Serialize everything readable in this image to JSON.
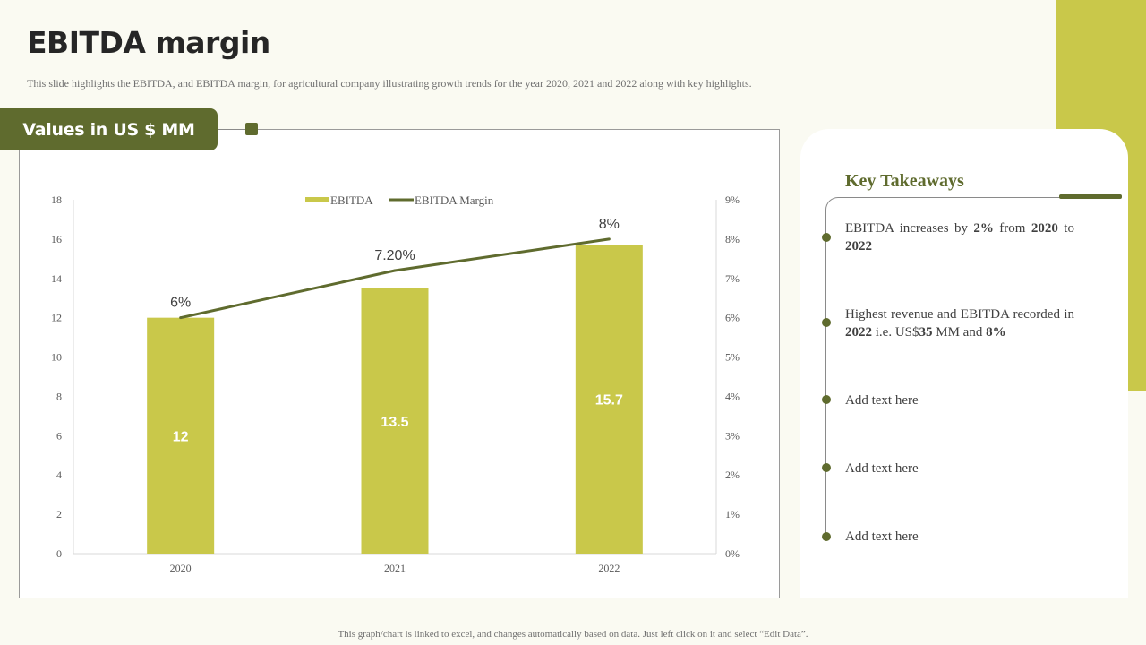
{
  "slide": {
    "title": "EBITDA margin",
    "subtitle": "This slide highlights the EBITDA,  and EBITDA  margin,  for agricultural  company illustrating  growth trends for the year 2020,  2021  and 2022  along with key highlights.",
    "banner": "Values in US $ MM",
    "footer": "This graph/chart is linked to excel,  and changes  automatically based on data.  Just left click  on it and select  “Edit Data”."
  },
  "colors": {
    "accent": "#c9c84a",
    "dark_green": "#5f6b2e",
    "bar": "#c9c84a",
    "line": "#5f6b2e"
  },
  "chart_data": {
    "type": "bar",
    "categories": [
      "2020",
      "2021",
      "2022"
    ],
    "series": [
      {
        "name": "EBITDA",
        "type": "bar",
        "axis": "left",
        "values": [
          12,
          13.5,
          15.7
        ],
        "labels": [
          "12",
          "13.5",
          "15.7"
        ]
      },
      {
        "name": "EBITDA Margin",
        "type": "line",
        "axis": "right",
        "values": [
          6,
          7.2,
          8
        ],
        "labels": [
          "6%",
          "7.20%",
          "8%"
        ]
      }
    ],
    "ylim": [
      0,
      18
    ],
    "yticks": [
      "0",
      "2",
      "4",
      "6",
      "8",
      "10",
      "12",
      "14",
      "16",
      "18"
    ],
    "y2lim": [
      0,
      9
    ],
    "y2ticks": [
      "0%",
      "1%",
      "2%",
      "3%",
      "4%",
      "5%",
      "6%",
      "7%",
      "8%",
      "9%"
    ],
    "legend": [
      "EBITDA",
      "EBITDA Margin"
    ],
    "legend_position": "top-center",
    "grid": false
  },
  "takeaways": {
    "title": "Key Takeaways",
    "items": [
      {
        "parts": [
          {
            "t": "EBITDA  increases  by ",
            "b": false
          },
          {
            "t": "2%",
            "b": true
          },
          {
            "t": " from  ",
            "b": false
          },
          {
            "t": "2020",
            "b": true
          },
          {
            "t": " to ",
            "b": false
          },
          {
            "t": "2022",
            "b": true
          }
        ]
      },
      {
        "parts": [
          {
            "t": "Highest  revenue  and EBITDA  recorded in ",
            "b": false
          },
          {
            "t": "2022",
            "b": true
          },
          {
            "t": " i.e.  US$",
            "b": false
          },
          {
            "t": "35",
            "b": true
          },
          {
            "t": " MM and ",
            "b": false
          },
          {
            "t": "8%",
            "b": true
          }
        ]
      },
      {
        "parts": [
          {
            "t": "Add text  here",
            "b": false
          }
        ]
      },
      {
        "parts": [
          {
            "t": "Add text  here",
            "b": false
          }
        ]
      },
      {
        "parts": [
          {
            "t": "Add text  here",
            "b": false
          }
        ]
      }
    ]
  }
}
